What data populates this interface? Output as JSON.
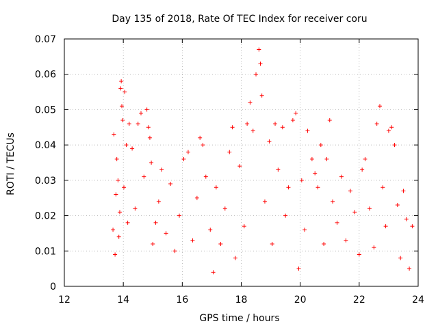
{
  "chart_data": {
    "type": "scatter",
    "title": "Day 135 of 2018, Rate Of TEC Index for receiver coru",
    "xlabel": "GPS time / hours",
    "ylabel": "ROTI / TECUs",
    "xlim": [
      12,
      24
    ],
    "ylim": [
      0,
      0.07
    ],
    "xticks": [
      12,
      14,
      16,
      18,
      20,
      22,
      24
    ],
    "xtick_labels": [
      "12",
      "14",
      "16",
      "18",
      "20",
      "22",
      "24"
    ],
    "yticks": [
      0,
      0.01,
      0.02,
      0.03,
      0.04,
      0.05,
      0.06,
      0.07
    ],
    "ytick_labels": [
      "0",
      "0.01",
      "0.02",
      "0.03",
      "0.04",
      "0.05",
      "0.06",
      "0.07"
    ],
    "grid": true,
    "marker": "plus",
    "color": "#ff0000",
    "data_range_x": [
      13.65,
      23.8
    ],
    "series": [
      {
        "name": "ROTI",
        "points": [
          [
            13.65,
            0.016
          ],
          [
            13.68,
            0.043
          ],
          [
            13.72,
            0.009
          ],
          [
            13.75,
            0.026
          ],
          [
            13.78,
            0.036
          ],
          [
            13.82,
            0.03
          ],
          [
            13.85,
            0.014
          ],
          [
            13.88,
            0.021
          ],
          [
            13.91,
            0.056
          ],
          [
            13.93,
            0.058
          ],
          [
            13.95,
            0.051
          ],
          [
            13.98,
            0.047
          ],
          [
            14.02,
            0.028
          ],
          [
            14.05,
            0.055
          ],
          [
            14.1,
            0.04
          ],
          [
            14.15,
            0.018
          ],
          [
            14.2,
            0.046
          ],
          [
            14.3,
            0.039
          ],
          [
            14.4,
            0.022
          ],
          [
            14.5,
            0.046
          ],
          [
            14.6,
            0.049
          ],
          [
            14.7,
            0.031
          ],
          [
            14.8,
            0.05
          ],
          [
            14.85,
            0.045
          ],
          [
            14.9,
            0.042
          ],
          [
            14.95,
            0.035
          ],
          [
            15.0,
            0.012
          ],
          [
            15.1,
            0.018
          ],
          [
            15.2,
            0.024
          ],
          [
            15.3,
            0.033
          ],
          [
            15.45,
            0.015
          ],
          [
            15.6,
            0.029
          ],
          [
            15.75,
            0.01
          ],
          [
            15.9,
            0.02
          ],
          [
            16.05,
            0.036
          ],
          [
            16.2,
            0.038
          ],
          [
            16.35,
            0.013
          ],
          [
            16.5,
            0.025
          ],
          [
            16.6,
            0.042
          ],
          [
            16.7,
            0.04
          ],
          [
            16.8,
            0.031
          ],
          [
            16.95,
            0.016
          ],
          [
            17.05,
            0.004
          ],
          [
            17.15,
            0.028
          ],
          [
            17.3,
            0.012
          ],
          [
            17.45,
            0.022
          ],
          [
            17.6,
            0.038
          ],
          [
            17.7,
            0.045
          ],
          [
            17.8,
            0.008
          ],
          [
            17.95,
            0.034
          ],
          [
            18.1,
            0.017
          ],
          [
            18.2,
            0.046
          ],
          [
            18.3,
            0.052
          ],
          [
            18.4,
            0.044
          ],
          [
            18.5,
            0.06
          ],
          [
            18.6,
            0.067
          ],
          [
            18.65,
            0.063
          ],
          [
            18.7,
            0.054
          ],
          [
            18.8,
            0.024
          ],
          [
            18.95,
            0.041
          ],
          [
            19.05,
            0.012
          ],
          [
            19.15,
            0.046
          ],
          [
            19.25,
            0.033
          ],
          [
            19.4,
            0.045
          ],
          [
            19.5,
            0.02
          ],
          [
            19.6,
            0.028
          ],
          [
            19.75,
            0.047
          ],
          [
            19.85,
            0.049
          ],
          [
            19.95,
            0.005
          ],
          [
            20.05,
            0.03
          ],
          [
            20.15,
            0.016
          ],
          [
            20.25,
            0.044
          ],
          [
            20.4,
            0.036
          ],
          [
            20.5,
            0.032
          ],
          [
            20.6,
            0.028
          ],
          [
            20.7,
            0.04
          ],
          [
            20.8,
            0.012
          ],
          [
            20.9,
            0.036
          ],
          [
            21.0,
            0.047
          ],
          [
            21.1,
            0.024
          ],
          [
            21.25,
            0.018
          ],
          [
            21.4,
            0.031
          ],
          [
            21.55,
            0.013
          ],
          [
            21.7,
            0.027
          ],
          [
            21.85,
            0.021
          ],
          [
            22.0,
            0.009
          ],
          [
            22.1,
            0.033
          ],
          [
            22.2,
            0.036
          ],
          [
            22.35,
            0.022
          ],
          [
            22.5,
            0.011
          ],
          [
            22.6,
            0.046
          ],
          [
            22.7,
            0.051
          ],
          [
            22.8,
            0.028
          ],
          [
            22.9,
            0.017
          ],
          [
            23.0,
            0.044
          ],
          [
            23.1,
            0.045
          ],
          [
            23.2,
            0.04
          ],
          [
            23.3,
            0.023
          ],
          [
            23.4,
            0.008
          ],
          [
            23.5,
            0.027
          ],
          [
            23.6,
            0.019
          ],
          [
            23.7,
            0.005
          ],
          [
            23.8,
            0.017
          ]
        ]
      }
    ]
  }
}
